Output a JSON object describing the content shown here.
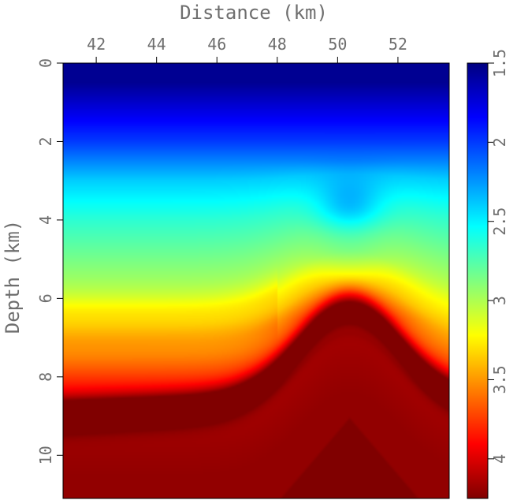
{
  "chart_data": {
    "type": "heatmap",
    "xlabel": "Distance (km)",
    "ylabel": "Depth (km)",
    "x_axis_position": "top",
    "xlim": [
      40.9,
      53.7
    ],
    "ylim": [
      0,
      11.1
    ],
    "y_inverted": true,
    "x_ticks": [
      42,
      44,
      46,
      48,
      50,
      52
    ],
    "x_tick_labels": [
      "42",
      "44",
      "46",
      "48",
      "50",
      "52"
    ],
    "y_ticks": [
      0,
      2,
      4,
      6,
      8,
      10
    ],
    "y_tick_labels": [
      "0",
      "2",
      "4",
      "6",
      "8",
      "10"
    ],
    "grid": false,
    "colorbar": {
      "position": "right",
      "range": [
        1.5,
        4.25
      ],
      "reversed": true,
      "ticks": [
        1.5,
        2,
        2.5,
        3,
        3.5,
        4
      ],
      "tick_labels": [
        "1.5",
        "2",
        "2.5",
        "3",
        "3.5",
        "4"
      ],
      "colormap": "jet"
    },
    "colors": {
      "colormap_stops": [
        "#000080",
        "#0000ff",
        "#00ffff",
        "#ffff00",
        "#ff0000",
        "#800000"
      ],
      "axis_text": "#6e6e6e",
      "frame": "#000000"
    },
    "field_description_points": [
      {
        "depth": 0.5,
        "velocity": 1.55
      },
      {
        "depth": 2.0,
        "velocity": 2.0
      },
      {
        "depth": 3.0,
        "velocity": 2.4
      },
      {
        "depth": 4.0,
        "velocity": 2.65
      },
      {
        "depth": 5.0,
        "velocity": 2.85
      },
      {
        "depth": 6.0,
        "velocity": 3.05
      },
      {
        "depth": 7.0,
        "velocity": 3.35
      },
      {
        "depth": 8.0,
        "velocity": 3.75
      },
      {
        "depth": 9.0,
        "velocity": 4.15
      },
      {
        "depth": 10.5,
        "velocity": 4.2
      }
    ]
  }
}
